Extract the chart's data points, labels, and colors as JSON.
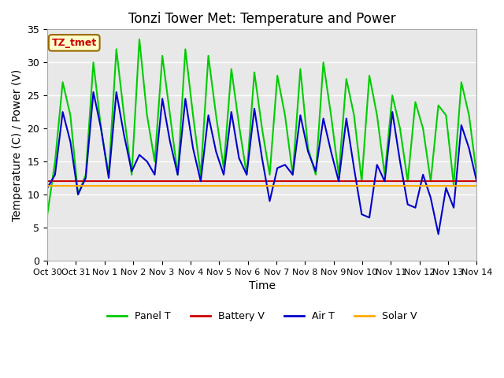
{
  "title": "Tonzi Tower Met: Temperature and Power",
  "xlabel": "Time",
  "ylabel": "Temperature (C) / Power (V)",
  "ylim": [
    0,
    35
  ],
  "bg_color": "#e8e8e8",
  "fig_color": "#ffffff",
  "grid_color": "#ffffff",
  "legend_items": [
    "Panel T",
    "Battery V",
    "Air T",
    "Solar V"
  ],
  "legend_colors": [
    "#00cc00",
    "#cc0000",
    "#0000cc",
    "#ffaa00"
  ],
  "annotation_text": "TZ_tmet",
  "annotation_bg": "#ffffcc",
  "annotation_fg": "#cc0000",
  "annotation_border": "#996600",
  "xtick_labels": [
    "Oct 30",
    "Oct 31",
    "Nov 1",
    "Nov 2",
    "Nov 3",
    "Nov 4",
    "Nov 5",
    "Nov 6",
    "Nov 7",
    "Nov 8",
    "Nov 9",
    "Nov 10",
    "Nov 11",
    "Nov 12",
    "Nov 13",
    "Nov 14"
  ],
  "ytick_labels": [
    "0",
    "5",
    "10",
    "15",
    "20",
    "25",
    "30",
    "35"
  ],
  "ytick_values": [
    0,
    5,
    10,
    15,
    20,
    25,
    30,
    35
  ],
  "panel_t": [
    7.0,
    15.0,
    27.0,
    22.0,
    10.0,
    13.0,
    30.0,
    20.0,
    13.0,
    32.0,
    22.0,
    13.0,
    33.5,
    22.0,
    15.0,
    31.0,
    22.0,
    13.0,
    32.0,
    22.0,
    13.0,
    31.0,
    22.0,
    14.0,
    29.0,
    20.5,
    13.0,
    28.5,
    20.0,
    13.0,
    28.0,
    22.0,
    13.0,
    29.0,
    17.0,
    13.0,
    30.0,
    22.0,
    13.0,
    27.5,
    22.0,
    12.0,
    28.0,
    22.0,
    13.0,
    25.0,
    20.0,
    12.0,
    24.0,
    20.0,
    12.0,
    23.5,
    22.0,
    11.5,
    27.0,
    22.0,
    13.0
  ],
  "battery_v": [
    12.0,
    12.0,
    12.0,
    12.0,
    12.0,
    12.0,
    12.0,
    12.0,
    12.0,
    12.0,
    12.0,
    12.0,
    12.0,
    12.0,
    12.0,
    12.0,
    12.0,
    12.0,
    12.0,
    12.0,
    12.0,
    12.0,
    12.0,
    12.0,
    12.0,
    12.0,
    12.0,
    12.0,
    12.0,
    12.0,
    12.0,
    12.0,
    12.0,
    12.0,
    12.0,
    12.0,
    12.0,
    12.0,
    12.0,
    12.0,
    12.0,
    12.0,
    12.0,
    12.0,
    12.0,
    12.0,
    12.0,
    12.0,
    12.0,
    12.0,
    12.0,
    12.0,
    12.0,
    12.0,
    12.0,
    12.0,
    12.0
  ],
  "air_t": [
    11.0,
    13.0,
    22.5,
    18.0,
    10.0,
    12.5,
    25.5,
    20.0,
    12.5,
    25.5,
    19.0,
    13.5,
    16.0,
    15.0,
    13.0,
    24.5,
    18.0,
    13.0,
    24.5,
    17.0,
    12.0,
    22.0,
    16.5,
    13.0,
    22.5,
    15.5,
    13.0,
    23.0,
    15.5,
    9.0,
    14.0,
    14.5,
    13.0,
    22.0,
    16.5,
    13.5,
    21.5,
    16.5,
    12.0,
    21.5,
    14.0,
    7.0,
    6.5,
    14.5,
    12.0,
    22.5,
    15.0,
    8.5,
    8.0,
    13.0,
    9.5,
    4.0,
    11.0,
    8.0,
    20.5,
    17.0,
    12.0
  ],
  "solar_v": [
    11.3,
    11.3,
    11.3,
    11.3,
    11.3,
    11.3,
    11.3,
    11.3,
    11.3,
    11.3,
    11.3,
    11.3,
    11.3,
    11.3,
    11.3,
    11.3,
    11.3,
    11.3,
    11.3,
    11.3,
    11.3,
    11.3,
    11.3,
    11.3,
    11.3,
    11.3,
    11.3,
    11.3,
    11.3,
    11.3,
    11.3,
    11.3,
    11.3,
    11.3,
    11.3,
    11.3,
    11.3,
    11.3,
    11.3,
    11.3,
    11.3,
    11.3,
    11.3,
    11.3,
    11.3,
    11.3,
    11.3,
    11.3,
    11.3,
    11.3,
    11.3,
    11.3,
    11.3,
    11.3,
    11.3,
    11.3,
    11.3
  ]
}
